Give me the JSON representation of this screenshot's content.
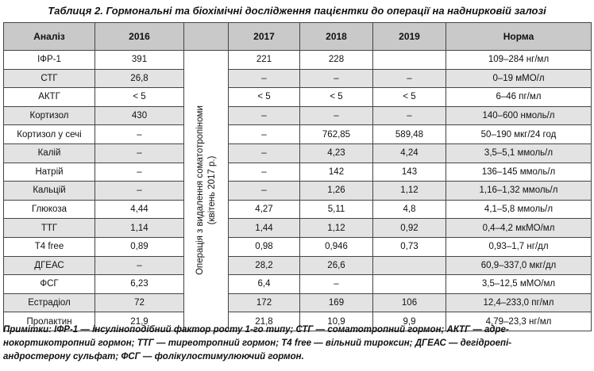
{
  "caption": "Таблиця 2. Гормональні та біохімічні дослідження пацієнтки до операції на наднирковій залозі",
  "table": {
    "headers": [
      "Аналіз",
      "2016",
      "",
      "2017",
      "2018",
      "2019",
      "Норма"
    ],
    "vertical_note_line1": "Операція з видалення соматотропіноми",
    "vertical_note_line2": "(квітень 2017 р.)",
    "rows": [
      {
        "name": "ІФР-1",
        "y2016": "391",
        "y2017": "221",
        "y2018": "228",
        "y2019": "",
        "norm": "109–284 нг/мл"
      },
      {
        "name": "СТГ",
        "y2016": "26,8",
        "y2017": "–",
        "y2018": "–",
        "y2019": "–",
        "norm": "0–19 мМО/л"
      },
      {
        "name": "АКТГ",
        "y2016": "< 5",
        "y2017": "< 5",
        "y2018": "< 5",
        "y2019": "< 5",
        "norm": "6–46 пг/мл"
      },
      {
        "name": "Кортизол",
        "y2016": "430",
        "y2017": "–",
        "y2018": "–",
        "y2019": "–",
        "norm": "140–600 нмоль/л"
      },
      {
        "name": "Кортизол у сечі",
        "y2016": "–",
        "y2017": "–",
        "y2018": "762,85",
        "y2019": "589,48",
        "norm": "50–190 мкг/24 год"
      },
      {
        "name": "Калій",
        "y2016": "–",
        "y2017": "–",
        "y2018": "4,23",
        "y2019": "4,24",
        "norm": "3,5–5,1 ммоль/л"
      },
      {
        "name": "Натрій",
        "y2016": "–",
        "y2017": "–",
        "y2018": "142",
        "y2019": "143",
        "norm": "136–145 ммоль/л"
      },
      {
        "name": "Кальцій",
        "y2016": "–",
        "y2017": "–",
        "y2018": "1,26",
        "y2019": "1,12",
        "norm": "1,16–1,32 ммоль/л"
      },
      {
        "name": "Глюкоза",
        "y2016": "4,44",
        "y2017": "4,27",
        "y2018": "5,11",
        "y2019": "4,8",
        "norm": "4,1–5,8 ммоль/л"
      },
      {
        "name": "ТТГ",
        "y2016": "1,14",
        "y2017": "1,44",
        "y2018": "1,12",
        "y2019": "0,92",
        "norm": "0,4–4,2 мкМО/мл"
      },
      {
        "name": "Т4 free",
        "y2016": "0,89",
        "y2017": "0,98",
        "y2018": "0,946",
        "y2019": "0,73",
        "norm": "0,93–1,7 нг/дл"
      },
      {
        "name": "ДГЕАС",
        "y2016": "–",
        "y2017": "28,2",
        "y2018": "26,6",
        "y2019": "",
        "norm": "60,9–337,0 мкг/дл"
      },
      {
        "name": "ФСГ",
        "y2016": "6,23",
        "y2017": "6,4",
        "y2018": "–",
        "y2019": "",
        "norm": "3,5–12,5 мМО/мл"
      },
      {
        "name": "Естрадіол",
        "y2016": "72",
        "y2017": "172",
        "y2018": "169",
        "y2019": "106",
        "norm": "12,4–233,0 пг/мл"
      },
      {
        "name": "Пролактин",
        "y2016": "21,9",
        "y2017": "21,8",
        "y2018": "10,9",
        "y2019": "9,9",
        "norm": "4,79–23,3 нг/мл"
      }
    ]
  },
  "notes": {
    "line1": "Примітки: ІФР-1 — інсуліноподібний фактор росту 1-го типу; СТГ — соматотропний гормон; АКТГ — адре-",
    "line2": "нокортикотропний гормон; ТТГ — тиреотропний гормон; Т4 free — вільний тироксин; ДГЕАС — дегідроепі-",
    "line3": "андростерону сульфат; ФСГ — фолікулостимулюючий гормон."
  }
}
